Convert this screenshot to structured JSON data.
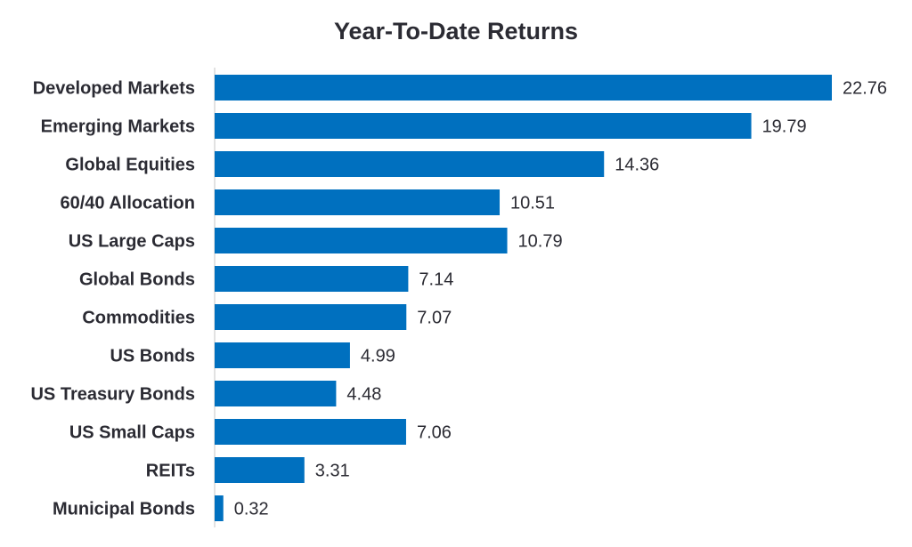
{
  "chart_data": {
    "type": "bar",
    "orientation": "horizontal",
    "title": "Year-To-Date Returns",
    "xlabel": "",
    "ylabel": "",
    "categories": [
      "Developed Markets",
      "Emerging Markets",
      "Global Equities",
      "60/40 Allocation",
      "US Large Caps",
      "Global Bonds",
      "Commodities",
      "US Bonds",
      "US Treasury Bonds",
      "US Small Caps",
      "REITs",
      "Municipal Bonds"
    ],
    "values": [
      22.76,
      19.79,
      14.36,
      10.51,
      10.79,
      7.14,
      7.07,
      4.99,
      4.48,
      7.06,
      3.31,
      0.32
    ],
    "value_labels": [
      "22.76",
      "19.79",
      "14.36",
      "10.51",
      "10.79",
      "7.14",
      "7.07",
      "4.99",
      "4.48",
      "7.06",
      "3.31",
      "0.32"
    ],
    "xlim": [
      0,
      22.76
    ],
    "grid": false,
    "legend": "none",
    "bar_color": "#0070bf",
    "axis_color": "#d9d9d9",
    "text_color": "#2b2b33"
  }
}
